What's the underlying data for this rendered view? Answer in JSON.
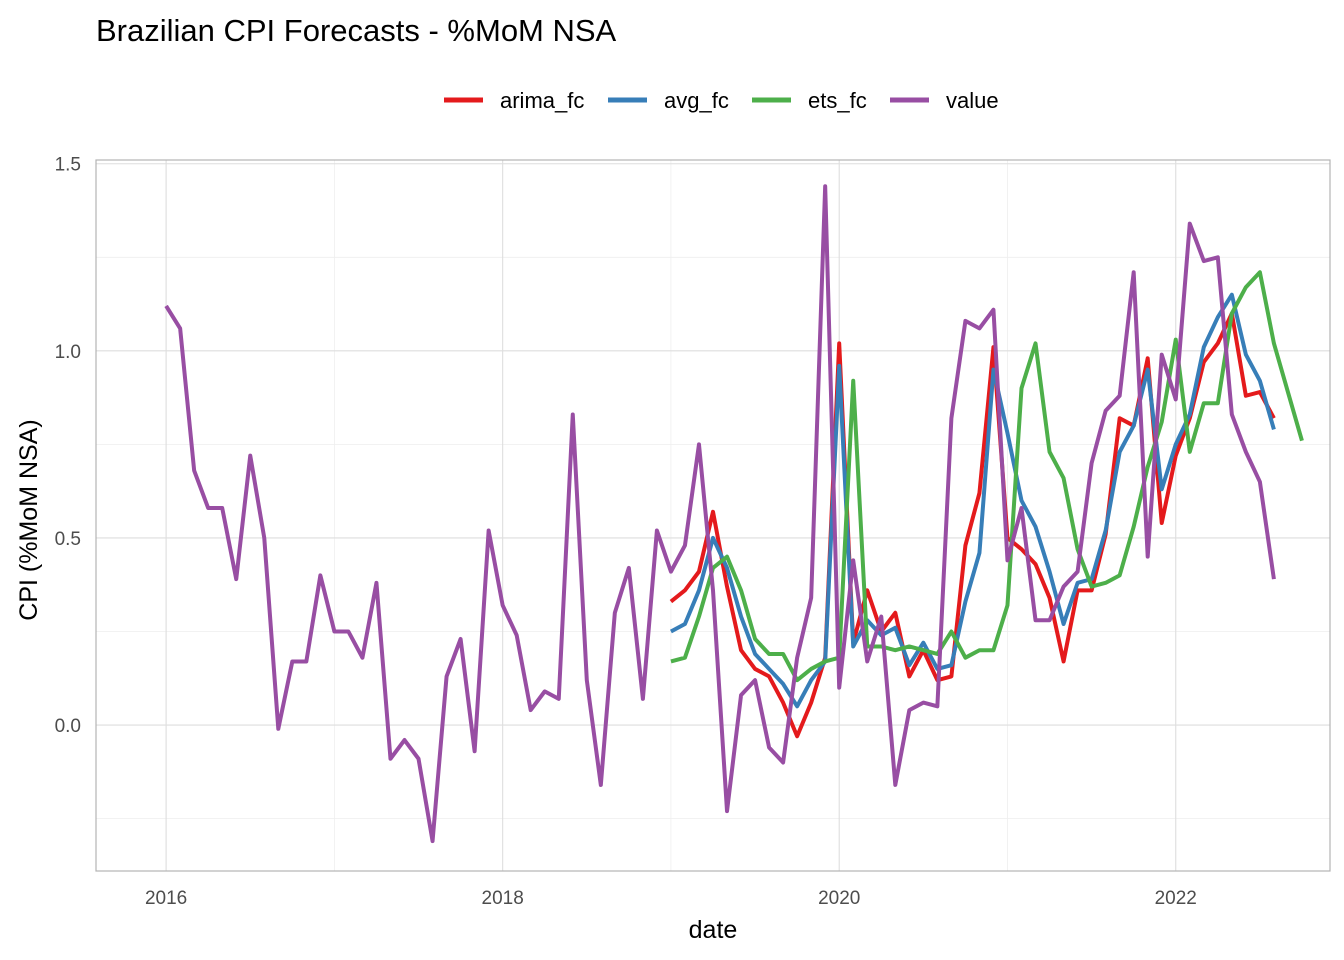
{
  "chart_data": {
    "type": "line",
    "title": "Brazilian CPI Forecasts - %MoM NSA",
    "xlabel": "date",
    "ylabel": "CPI (%MoM NSA)",
    "xlim": [
      "2015-08",
      "2022-12"
    ],
    "ylim": [
      -0.39,
      1.51
    ],
    "x_ticks": [
      {
        "date": "2016-01",
        "label": "2016"
      },
      {
        "date": "2018-01",
        "label": "2018"
      },
      {
        "date": "2020-01",
        "label": "2020"
      },
      {
        "date": "2022-01",
        "label": "2022"
      }
    ],
    "y_ticks": [
      {
        "value": 0.0,
        "label": "0.0"
      },
      {
        "value": 0.5,
        "label": "0.5"
      },
      {
        "value": 1.0,
        "label": "1.0"
      },
      {
        "value": 1.5,
        "label": "1.5"
      }
    ],
    "grid": true,
    "legend_position": "top",
    "series": [
      {
        "name": "arima_fc",
        "color": "#e41a1c",
        "start": "2019-01",
        "values": [
          0.33,
          0.36,
          0.41,
          0.57,
          0.37,
          0.2,
          0.15,
          0.13,
          0.06,
          -0.03,
          0.06,
          0.18,
          1.02,
          0.22,
          0.36,
          0.25,
          0.3,
          0.13,
          0.2,
          0.12,
          0.13,
          0.48,
          0.62,
          1.01,
          0.5,
          0.47,
          0.43,
          0.34,
          0.17,
          0.36,
          0.36,
          0.51,
          0.82,
          0.8,
          0.98,
          0.54,
          0.72,
          0.82,
          0.97,
          1.02,
          1.1,
          0.88,
          0.89,
          0.82
        ]
      },
      {
        "name": "avg_fc",
        "color": "#377eb8",
        "start": "2019-01",
        "values": [
          0.25,
          0.27,
          0.36,
          0.5,
          0.42,
          0.29,
          0.19,
          0.15,
          0.11,
          0.05,
          0.12,
          0.17,
          0.96,
          0.21,
          0.28,
          0.24,
          0.26,
          0.16,
          0.22,
          0.15,
          0.16,
          0.33,
          0.46,
          0.95,
          0.78,
          0.6,
          0.53,
          0.41,
          0.27,
          0.38,
          0.39,
          0.52,
          0.73,
          0.8,
          0.95,
          0.63,
          0.75,
          0.83,
          1.01,
          1.09,
          1.15,
          0.99,
          0.92,
          0.79
        ]
      },
      {
        "name": "ets_fc",
        "color": "#4daf4a",
        "start": "2019-01",
        "values": [
          0.17,
          0.18,
          0.29,
          0.42,
          0.45,
          0.36,
          0.23,
          0.19,
          0.19,
          0.12,
          0.15,
          0.17,
          0.18,
          0.92,
          0.21,
          0.21,
          0.2,
          0.21,
          0.2,
          0.19,
          0.25,
          0.18,
          0.2,
          0.2,
          0.32,
          0.9,
          1.02,
          0.73,
          0.66,
          0.47,
          0.37,
          0.38,
          0.4,
          0.53,
          0.69,
          0.81,
          1.03,
          0.73,
          0.86,
          0.86,
          1.1,
          1.17,
          1.21,
          1.02,
          0.89,
          0.76
        ]
      },
      {
        "name": "value",
        "color": "#984ea3",
        "start": "2016-01",
        "values": [
          1.12,
          1.06,
          0.68,
          0.58,
          0.58,
          0.39,
          0.72,
          0.5,
          -0.01,
          0.17,
          0.17,
          0.4,
          0.25,
          0.25,
          0.18,
          0.38,
          -0.09,
          -0.04,
          -0.09,
          -0.31,
          0.13,
          0.23,
          -0.07,
          0.52,
          0.32,
          0.24,
          0.04,
          0.09,
          0.07,
          0.83,
          0.12,
          -0.16,
          0.3,
          0.42,
          0.07,
          0.52,
          0.41,
          0.48,
          0.75,
          0.36,
          -0.23,
          0.08,
          0.12,
          -0.06,
          -0.1,
          0.18,
          0.34,
          1.44,
          0.1,
          0.44,
          0.17,
          0.29,
          -0.16,
          0.04,
          0.06,
          0.05,
          0.82,
          1.08,
          1.06,
          1.11,
          0.44,
          0.58,
          0.28,
          0.28,
          0.37,
          0.41,
          0.7,
          0.84,
          0.88,
          1.21,
          0.45,
          0.99,
          0.87,
          1.34,
          1.24,
          1.25,
          0.83,
          0.73,
          0.65,
          0.39
        ]
      }
    ]
  }
}
